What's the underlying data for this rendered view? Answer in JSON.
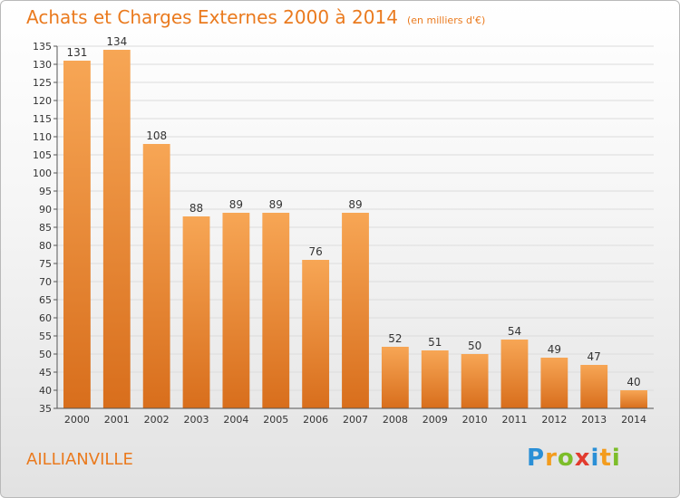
{
  "title": "Achats et Charges Externes 2000 à 2014",
  "unit": "(en milliers d'€)",
  "location": "AILLIANVILLE",
  "logo": {
    "letters": [
      "P",
      "r",
      "o",
      "x",
      "i",
      "t",
      "i"
    ],
    "colors": [
      "#2a8fd6",
      "#f39c1e",
      "#7cbd2a",
      "#e23b2e",
      "#2a8fd6",
      "#f39c1e",
      "#7cbd2a"
    ]
  },
  "colors": {
    "bar_top": "#f7a655",
    "bar_bottom": "#d86e1c",
    "accent": "#ea7a1e"
  },
  "chart_data": {
    "type": "bar",
    "categories": [
      "2000",
      "2001",
      "2002",
      "2003",
      "2004",
      "2005",
      "2006",
      "2007",
      "2008",
      "2009",
      "2010",
      "2011",
      "2012",
      "2013",
      "2014"
    ],
    "values": [
      131,
      134,
      108,
      88,
      89,
      89,
      76,
      89,
      52,
      51,
      50,
      54,
      49,
      47,
      40
    ],
    "ylim": [
      35,
      135
    ],
    "yticks": [
      35,
      40,
      45,
      50,
      55,
      60,
      65,
      70,
      75,
      80,
      85,
      90,
      95,
      100,
      105,
      110,
      115,
      120,
      125,
      130,
      135
    ],
    "grid": true
  }
}
